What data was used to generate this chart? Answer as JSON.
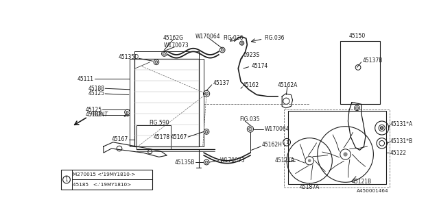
{
  "background_color": "#ffffff",
  "line_color": "#1a1a1a",
  "gray": "#888888",
  "dashed_color": "#666666",
  "title": "A450001464",
  "legend_line1": "45185   <-'19MY1810>",
  "legend_line2": "M270015 <'19MY1810->",
  "fs": 5.5
}
